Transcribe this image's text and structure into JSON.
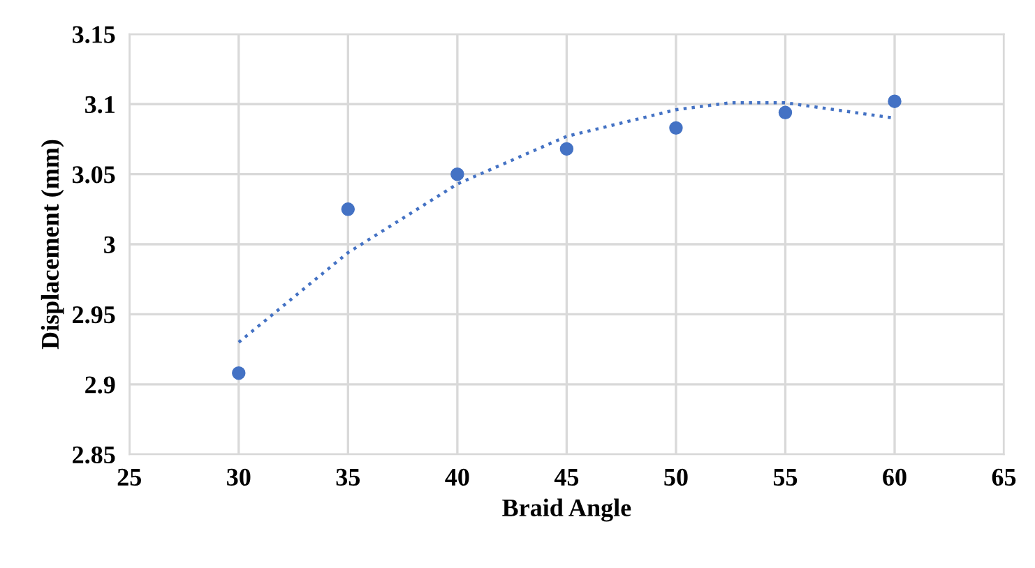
{
  "chart_data": {
    "type": "scatter",
    "xlabel": "Braid Angle",
    "ylabel": "Displacement (mm)",
    "xlim": [
      25,
      65
    ],
    "xticks": [
      25,
      30,
      35,
      40,
      45,
      50,
      55,
      60,
      65
    ],
    "ylim": [
      2.85,
      3.15
    ],
    "yticks": [
      2.85,
      2.9,
      2.95,
      3,
      3.05,
      3.1,
      3.15
    ],
    "grid": true,
    "series": [
      {
        "color": "#4472c4",
        "marker": "circle",
        "x": [
          30,
          35,
          40,
          45,
          50,
          55,
          60
        ],
        "values": [
          2.908,
          3.025,
          3.05,
          3.068,
          3.083,
          3.094,
          3.102
        ]
      },
      {
        "type": "line",
        "color": "#4472c4",
        "line_style": "dotted",
        "marker": "none",
        "x": [
          30,
          35,
          40,
          45,
          50,
          52.5,
          55,
          60
        ],
        "values": [
          2.93,
          2.994,
          3.043,
          3.077,
          3.096,
          3.101,
          3.101,
          3.09
        ]
      }
    ]
  }
}
